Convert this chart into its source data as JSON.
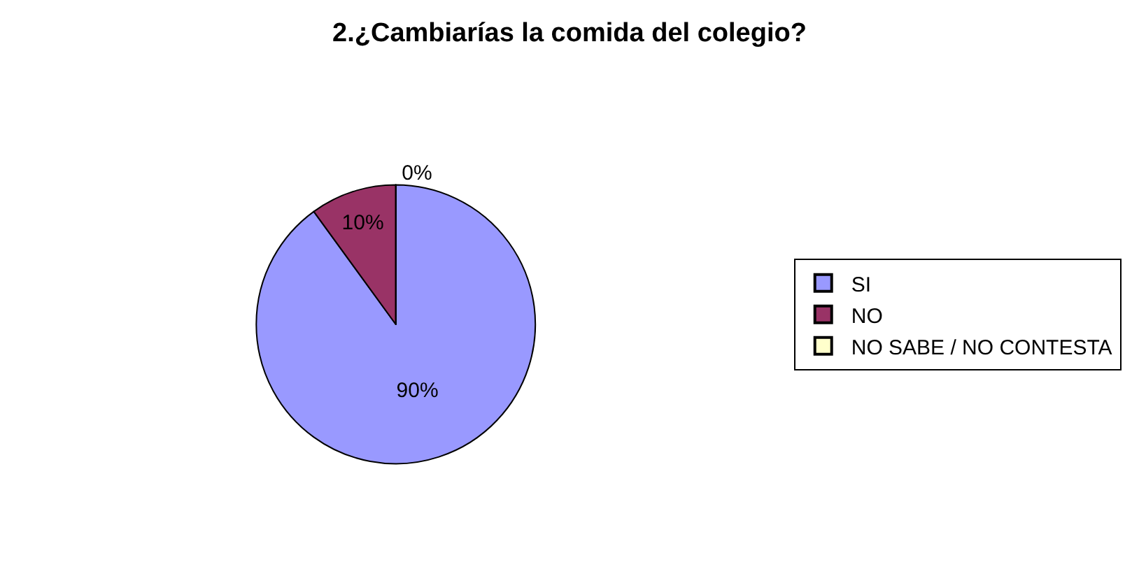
{
  "chart_data": {
    "type": "pie",
    "title": "2.¿Cambiarías la comida del colegio?",
    "categories": [
      "SI",
      "NO",
      "NO SABE / NO CONTESTA"
    ],
    "values": [
      90,
      10,
      0
    ],
    "value_labels": [
      "90%",
      "10%",
      "0%"
    ],
    "colors": [
      "#9999ff",
      "#993366",
      "#ffffcc"
    ],
    "legend": "right"
  }
}
